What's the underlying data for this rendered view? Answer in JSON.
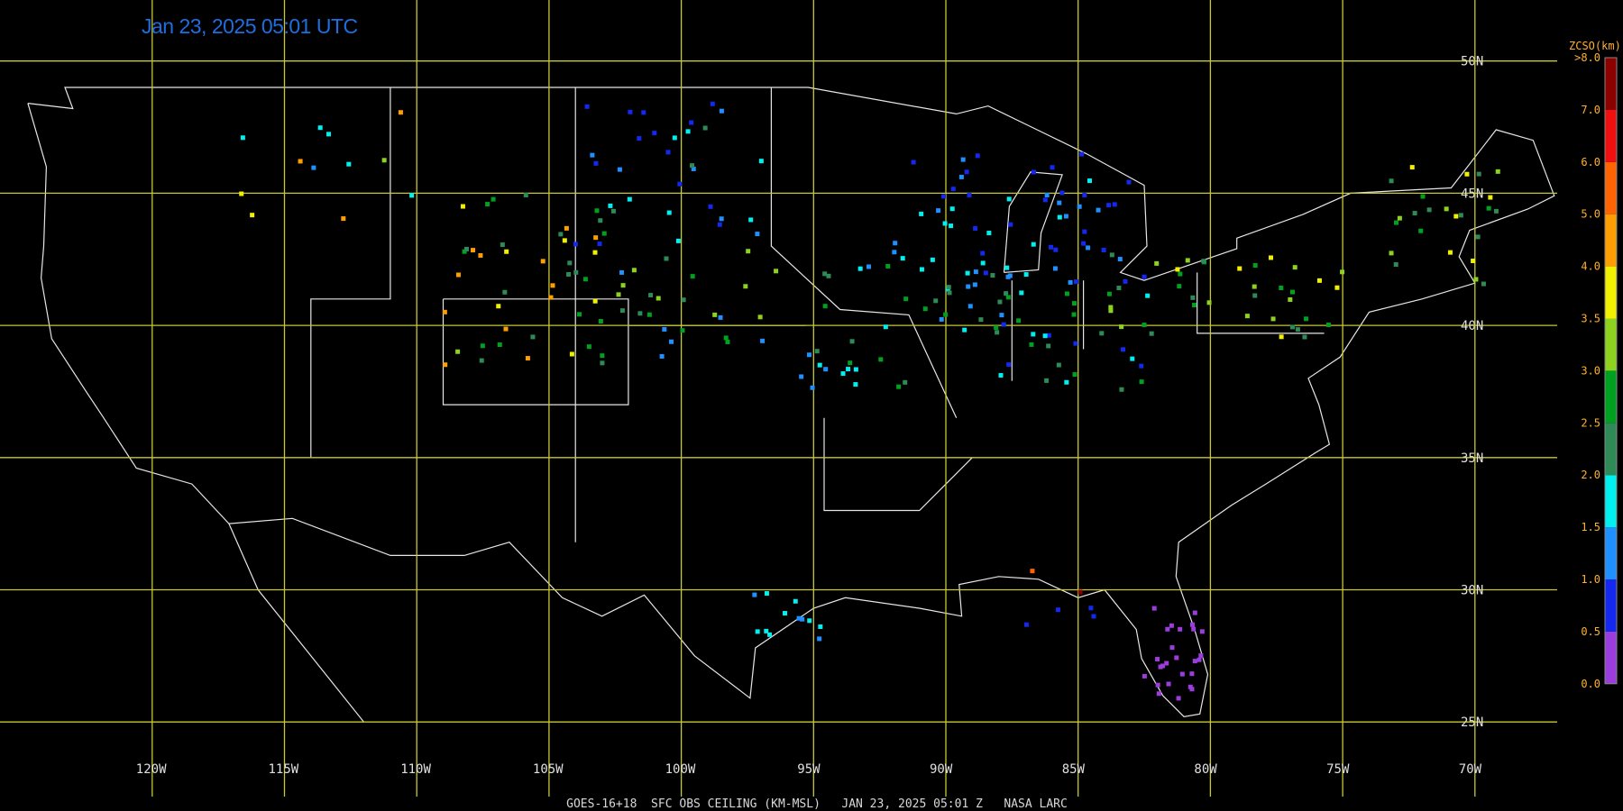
{
  "title": "Jan 23, 2025 05:01 UTC",
  "footer": "GOES-16+18  SFC OBS CEILING (KM-MSL)   JAN 23, 2025 05:01 Z   NASA LARC",
  "latitude_labels": [
    "50N",
    "45N",
    "40N",
    "35N",
    "30N",
    "25N"
  ],
  "longitude_labels": [
    "120W",
    "115W",
    "110W",
    "105W",
    "100W",
    "95W",
    "90W",
    "85W",
    "80W",
    "75W",
    "70W"
  ],
  "legend": {
    "title": "ZCSO(km)",
    "labels": [
      ">8.0",
      "7.0",
      "6.0",
      "5.0",
      "4.0",
      "3.5",
      "3.0",
      "2.5",
      "2.0",
      "1.5",
      "1.0",
      "0.5",
      "0.0"
    ]
  }
}
